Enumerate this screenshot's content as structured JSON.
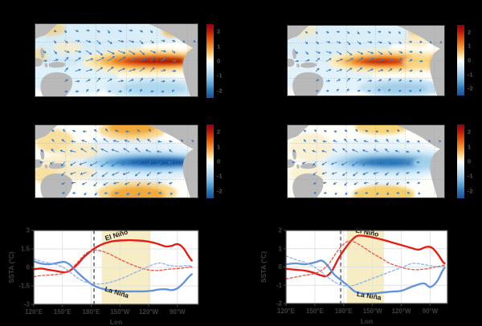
{
  "figure": {
    "background": "#000000",
    "panel_face": "#ffffff"
  },
  "map_panels": [
    {
      "name": "ssta-wind-composite-el-nino-left",
      "colorbar_ticks": [
        "2",
        "1",
        "0",
        "-1",
        "-2"
      ]
    },
    {
      "name": "ssta-wind-composite-el-nino-right",
      "colorbar_ticks": [
        "2",
        "1",
        "0",
        "-1",
        "-2"
      ]
    },
    {
      "name": "ssta-wind-composite-la-nina-left",
      "colorbar_ticks": [
        "2",
        "1",
        "0",
        "-1",
        "-2"
      ]
    },
    {
      "name": "ssta-wind-composite-la-nina-right",
      "colorbar_ticks": [
        "2",
        "1",
        "0",
        "-1",
        "-2"
      ]
    }
  ],
  "chart_data": [
    {
      "type": "line",
      "xlabel": "Lon",
      "ylabel": "SSTA (°C)",
      "xlim": [
        120,
        292
      ],
      "ylim": [
        -3,
        3
      ],
      "xtick_values": [
        120,
        150,
        180,
        210,
        240,
        270
      ],
      "xtick_labels": [
        "120°E",
        "150°E",
        "180°E",
        "150°W",
        "120°W",
        "90°W"
      ],
      "ytick_values": [
        3,
        1.5,
        0,
        -1.5,
        -3
      ],
      "ytick_labels": [
        "3",
        "1.5",
        "0",
        "-1.5",
        "-3"
      ],
      "grid": true,
      "band_lon": [
        191,
        242
      ],
      "band_color": "#f7edc5",
      "dashed_vline_lon": 183,
      "annotations": [
        {
          "text": "El Niño",
          "lon": 207,
          "val": 2.45,
          "rot": -17
        },
        {
          "text": "La Niña",
          "lon": 206,
          "val": -2.2,
          "rot": 17
        }
      ],
      "series": [
        {
          "name": "El Nino solid",
          "style": "solid",
          "color": "#e81910",
          "width": 2.3,
          "x": [
            120,
            128,
            136,
            144,
            152,
            158,
            165,
            172,
            180,
            188,
            196,
            205,
            215,
            225,
            235,
            243,
            250,
            258,
            264,
            270,
            276,
            281,
            285
          ],
          "y": [
            -0.15,
            -0.1,
            -0.2,
            -0.3,
            -0.4,
            -0.25,
            0.2,
            0.8,
            1.35,
            1.75,
            2.0,
            2.15,
            2.2,
            2.2,
            2.15,
            2.05,
            1.9,
            1.7,
            1.75,
            1.9,
            1.6,
            1.0,
            0.55
          ]
        },
        {
          "name": "La Nina solid",
          "style": "solid",
          "color": "#6092e0",
          "width": 2.3,
          "x": [
            120,
            128,
            136,
            144,
            152,
            158,
            165,
            172,
            180,
            188,
            196,
            205,
            215,
            225,
            235,
            243,
            250,
            258,
            264,
            270,
            276,
            281,
            285
          ],
          "y": [
            0.5,
            0.3,
            0.25,
            0.35,
            0.45,
            0.2,
            -0.35,
            -0.85,
            -1.35,
            -1.65,
            -1.8,
            -1.9,
            -1.95,
            -1.95,
            -1.95,
            -1.9,
            -1.8,
            -1.78,
            -1.85,
            -1.7,
            -1.3,
            -0.85,
            -0.55
          ]
        },
        {
          "name": "El Nino dashed",
          "style": "dashed",
          "color": "#ee5145",
          "width": 1.3,
          "x": [
            120,
            130,
            140,
            150,
            158,
            165,
            172,
            178,
            184,
            192,
            200,
            210,
            220,
            230,
            240,
            250,
            260,
            270,
            280,
            285
          ],
          "y": [
            -0.75,
            -0.65,
            -0.6,
            -0.5,
            -0.2,
            0.35,
            0.95,
            1.3,
            1.4,
            1.3,
            1.05,
            0.65,
            0.3,
            0.0,
            -0.2,
            -0.25,
            -0.15,
            -0.1,
            0.0,
            0.05
          ]
        },
        {
          "name": "La Nina dashed",
          "style": "dashed",
          "color": "#8cb2ee",
          "width": 1.3,
          "x": [
            120,
            130,
            140,
            148,
            155,
            163,
            170,
            178,
            186,
            195,
            205,
            215,
            225,
            235,
            244,
            252,
            262,
            272,
            280,
            285
          ],
          "y": [
            0.7,
            0.45,
            0.3,
            0.1,
            -0.2,
            -0.7,
            -1.05,
            -1.28,
            -1.35,
            -1.3,
            -1.1,
            -0.8,
            -0.45,
            -0.1,
            0.2,
            0.35,
            0.15,
            0.1,
            0.15,
            0.1
          ]
        }
      ]
    },
    {
      "type": "line",
      "xlabel": "Lon",
      "ylabel": "SSTA (°C)",
      "xlim": [
        120,
        288
      ],
      "ylim": [
        -2,
        2
      ],
      "xtick_values": [
        120,
        150,
        180,
        210,
        240,
        270
      ],
      "xtick_labels": [
        "120°E",
        "150°E",
        "180°E",
        "150°W",
        "120°W",
        "90°W"
      ],
      "ytick_values": [
        2,
        1,
        0,
        -1,
        -2
      ],
      "ytick_labels": [
        "2",
        "1",
        "0",
        "-1",
        "-2"
      ],
      "grid": true,
      "band_lon": [
        183.5,
        222
      ],
      "band_color": "#f7edc5",
      "dashed_vline_lon": 177,
      "annotations": [
        {
          "text": "El Niño",
          "lon": 204,
          "val": 1.78,
          "rot": 11
        },
        {
          "text": "La Niña",
          "lon": 206,
          "val": -1.7,
          "rot": 9
        }
      ],
      "series": [
        {
          "name": "El Nino solid",
          "style": "solid",
          "color": "#e81910",
          "width": 2.3,
          "x": [
            120,
            130,
            140,
            148,
            156,
            162,
            168,
            175,
            182,
            188,
            194,
            202,
            210,
            220,
            230,
            240,
            250,
            258,
            266,
            272,
            278,
            283,
            285
          ],
          "y": [
            -0.1,
            -0.15,
            -0.2,
            -0.3,
            -0.45,
            -0.5,
            -0.2,
            0.5,
            1.05,
            1.45,
            1.7,
            1.7,
            1.62,
            1.5,
            1.35,
            1.2,
            1.05,
            0.95,
            1.1,
            1.05,
            0.7,
            0.3,
            0.2
          ]
        },
        {
          "name": "La Nina solid",
          "style": "solid",
          "color": "#6092e0",
          "width": 2.3,
          "x": [
            120,
            130,
            140,
            150,
            157,
            163,
            170,
            178,
            185,
            192,
            200,
            210,
            220,
            230,
            240,
            250,
            258,
            264,
            270,
            277,
            283,
            285
          ],
          "y": [
            0.15,
            0.2,
            0.15,
            0.25,
            0.35,
            0.1,
            -0.4,
            -0.75,
            -1.05,
            -1.35,
            -1.45,
            -1.45,
            -1.4,
            -1.35,
            -1.3,
            -1.1,
            -0.95,
            -0.9,
            -1.1,
            -0.8,
            -0.2,
            -0.05
          ]
        },
        {
          "name": "El Nino dashed",
          "style": "dashed",
          "color": "#ee5145",
          "width": 1.3,
          "x": [
            120,
            130,
            140,
            150,
            158,
            165,
            172,
            178,
            185,
            192,
            200,
            210,
            220,
            228,
            236,
            246,
            256,
            266,
            276,
            285
          ],
          "y": [
            -0.65,
            -0.55,
            -0.45,
            -0.35,
            -0.15,
            0.2,
            0.75,
            1.15,
            1.42,
            1.35,
            1.1,
            0.75,
            0.45,
            0.2,
            0.05,
            -0.1,
            -0.15,
            -0.1,
            0.0,
            0.1
          ]
        },
        {
          "name": "La Nina dashed",
          "style": "dashed",
          "color": "#8cb2ee",
          "width": 1.3,
          "x": [
            120,
            130,
            140,
            148,
            155,
            162,
            170,
            178,
            186,
            194,
            204,
            214,
            224,
            234,
            244,
            252,
            262,
            272,
            280,
            285
          ],
          "y": [
            0.6,
            0.4,
            0.25,
            0.05,
            -0.2,
            -0.5,
            -0.8,
            -1.0,
            -1.05,
            -0.95,
            -0.75,
            -0.55,
            -0.35,
            -0.15,
            0.05,
            0.2,
            0.15,
            0.05,
            0.0,
            0.05
          ]
        }
      ]
    }
  ]
}
